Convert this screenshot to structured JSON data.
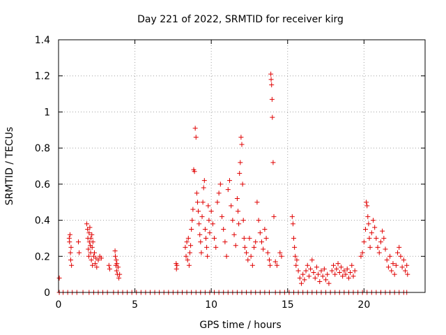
{
  "chart_data": {
    "type": "scatter",
    "title": "Day 221 of 2022, SRMTID for receiver kirg",
    "xlabel": "GPS time / hours",
    "ylabel": "SRMTID / TECUs",
    "xlim": [
      0,
      24
    ],
    "ylim": [
      0,
      1.4
    ],
    "xticks": [
      0,
      5,
      10,
      15,
      20
    ],
    "xtick_labels": [
      "0",
      "5",
      "10",
      "15",
      "20"
    ],
    "yticks": [
      0,
      0.2,
      0.4,
      0.6,
      0.8,
      1.0,
      1.2,
      1.4
    ],
    "ytick_labels": [
      "0",
      "0.2",
      "0.4",
      "0.6",
      "0.8",
      "1",
      "1.2",
      "1.4"
    ],
    "grid": true,
    "marker": "+",
    "color": "#e00000",
    "series": [
      {
        "name": "SRMTID",
        "points": [
          [
            0.05,
            0.08
          ],
          [
            0.05,
            0.0
          ],
          [
            0.3,
            0.0
          ],
          [
            0.6,
            0.0
          ],
          [
            0.7,
            0.3
          ],
          [
            0.72,
            0.28
          ],
          [
            0.75,
            0.32
          ],
          [
            0.78,
            0.22
          ],
          [
            0.8,
            0.18
          ],
          [
            0.82,
            0.25
          ],
          [
            0.85,
            0.15
          ],
          [
            0.9,
            0.0
          ],
          [
            1.2,
            0.0
          ],
          [
            1.3,
            0.28
          ],
          [
            1.35,
            0.22
          ],
          [
            1.6,
            0.0
          ],
          [
            1.85,
            0.38
          ],
          [
            1.9,
            0.35
          ],
          [
            1.92,
            0.3
          ],
          [
            1.95,
            0.24
          ],
          [
            1.98,
            0.2
          ],
          [
            2.0,
            0.33
          ],
          [
            2.02,
            0.28
          ],
          [
            2.05,
            0.36
          ],
          [
            2.08,
            0.26
          ],
          [
            2.1,
            0.22
          ],
          [
            2.12,
            0.3
          ],
          [
            2.15,
            0.18
          ],
          [
            2.18,
            0.32
          ],
          [
            2.2,
            0.25
          ],
          [
            2.22,
            0.15
          ],
          [
            2.25,
            0.28
          ],
          [
            2.3,
            0.2
          ],
          [
            2.35,
            0.22
          ],
          [
            2.4,
            0.16
          ],
          [
            2.45,
            0.19
          ],
          [
            2.5,
            0.14
          ],
          [
            2.6,
            0.18
          ],
          [
            2.7,
            0.2
          ],
          [
            2.8,
            0.19
          ],
          [
            2.0,
            0.0
          ],
          [
            2.3,
            0.0
          ],
          [
            2.6,
            0.0
          ],
          [
            2.9,
            0.0
          ],
          [
            3.2,
            0.0
          ],
          [
            3.3,
            0.15
          ],
          [
            3.35,
            0.13
          ],
          [
            3.7,
            0.23
          ],
          [
            3.72,
            0.2
          ],
          [
            3.75,
            0.15
          ],
          [
            3.78,
            0.18
          ],
          [
            3.8,
            0.12
          ],
          [
            3.82,
            0.16
          ],
          [
            3.85,
            0.1
          ],
          [
            3.9,
            0.14
          ],
          [
            3.95,
            0.08
          ],
          [
            4.0,
            0.1
          ],
          [
            3.6,
            0.0
          ],
          [
            3.9,
            0.0
          ],
          [
            4.2,
            0.0
          ],
          [
            4.5,
            0.0
          ],
          [
            4.8,
            0.0
          ],
          [
            5.1,
            0.0
          ],
          [
            5.4,
            0.0
          ],
          [
            5.7,
            0.0
          ],
          [
            6.0,
            0.0
          ],
          [
            6.3,
            0.0
          ],
          [
            6.6,
            0.0
          ],
          [
            6.9,
            0.0
          ],
          [
            7.2,
            0.0
          ],
          [
            7.5,
            0.0
          ],
          [
            7.7,
            0.16
          ],
          [
            7.72,
            0.13
          ],
          [
            7.75,
            0.15
          ],
          [
            7.8,
            0.0
          ],
          [
            8.1,
            0.0
          ],
          [
            8.3,
            0.25
          ],
          [
            8.35,
            0.2
          ],
          [
            8.4,
            0.28
          ],
          [
            8.45,
            0.18
          ],
          [
            8.5,
            0.3
          ],
          [
            8.55,
            0.15
          ],
          [
            8.6,
            0.22
          ],
          [
            8.65,
            0.26
          ],
          [
            8.7,
            0.35
          ],
          [
            8.75,
            0.4
          ],
          [
            8.8,
            0.46
          ],
          [
            8.85,
            0.68
          ],
          [
            8.9,
            0.67
          ],
          [
            8.95,
            0.91
          ],
          [
            9.0,
            0.86
          ],
          [
            9.05,
            0.55
          ],
          [
            9.1,
            0.5
          ],
          [
            9.15,
            0.45
          ],
          [
            9.2,
            0.38
          ],
          [
            9.25,
            0.32
          ],
          [
            9.3,
            0.28
          ],
          [
            9.35,
            0.22
          ],
          [
            9.4,
            0.42
          ],
          [
            9.45,
            0.5
          ],
          [
            9.5,
            0.58
          ],
          [
            9.55,
            0.62
          ],
          [
            9.6,
            0.35
          ],
          [
            9.65,
            0.3
          ],
          [
            9.7,
            0.25
          ],
          [
            9.75,
            0.2
          ],
          [
            9.8,
            0.48
          ],
          [
            9.85,
            0.4
          ],
          [
            9.9,
            0.33
          ],
          [
            8.4,
            0.0
          ],
          [
            8.7,
            0.0
          ],
          [
            9.0,
            0.0
          ],
          [
            9.3,
            0.0
          ],
          [
            9.6,
            0.0
          ],
          [
            9.9,
            0.0
          ],
          [
            10.0,
            0.45
          ],
          [
            10.1,
            0.38
          ],
          [
            10.2,
            0.3
          ],
          [
            10.3,
            0.25
          ],
          [
            10.4,
            0.5
          ],
          [
            10.5,
            0.55
          ],
          [
            10.6,
            0.6
          ],
          [
            10.7,
            0.42
          ],
          [
            10.8,
            0.35
          ],
          [
            10.9,
            0.28
          ],
          [
            11.0,
            0.2
          ],
          [
            11.1,
            0.57
          ],
          [
            11.2,
            0.62
          ],
          [
            11.3,
            0.48
          ],
          [
            11.4,
            0.4
          ],
          [
            11.5,
            0.32
          ],
          [
            11.6,
            0.26
          ],
          [
            11.7,
            0.52
          ],
          [
            11.75,
            0.45
          ],
          [
            11.8,
            0.38
          ],
          [
            11.85,
            0.66
          ],
          [
            11.9,
            0.72
          ],
          [
            11.95,
            0.86
          ],
          [
            12.0,
            0.82
          ],
          [
            12.05,
            0.6
          ],
          [
            12.1,
            0.4
          ],
          [
            12.15,
            0.3
          ],
          [
            12.2,
            0.25
          ],
          [
            10.2,
            0.0
          ],
          [
            10.5,
            0.0
          ],
          [
            10.8,
            0.0
          ],
          [
            11.1,
            0.0
          ],
          [
            11.4,
            0.0
          ],
          [
            11.7,
            0.0
          ],
          [
            12.0,
            0.0
          ],
          [
            12.3,
            0.22
          ],
          [
            12.4,
            0.18
          ],
          [
            12.5,
            0.3
          ],
          [
            12.6,
            0.2
          ],
          [
            12.7,
            0.15
          ],
          [
            12.8,
            0.25
          ],
          [
            12.9,
            0.28
          ],
          [
            13.0,
            0.5
          ],
          [
            13.1,
            0.4
          ],
          [
            13.2,
            0.33
          ],
          [
            13.3,
            0.28
          ],
          [
            13.4,
            0.24
          ],
          [
            13.5,
            0.35
          ],
          [
            13.6,
            0.3
          ],
          [
            13.7,
            0.22
          ],
          [
            13.8,
            0.18
          ],
          [
            13.85,
            0.15
          ],
          [
            12.3,
            0.0
          ],
          [
            12.6,
            0.0
          ],
          [
            12.9,
            0.0
          ],
          [
            13.2,
            0.0
          ],
          [
            13.5,
            0.0
          ],
          [
            13.8,
            0.0
          ],
          [
            13.9,
            1.21
          ],
          [
            13.92,
            1.18
          ],
          [
            13.95,
            1.15
          ],
          [
            13.98,
            1.07
          ],
          [
            14.0,
            0.97
          ],
          [
            14.05,
            0.72
          ],
          [
            14.1,
            0.42
          ],
          [
            14.2,
            0.17
          ],
          [
            14.3,
            0.15
          ],
          [
            14.5,
            0.22
          ],
          [
            14.6,
            0.2
          ],
          [
            14.2,
            0.0
          ],
          [
            14.5,
            0.0
          ],
          [
            14.8,
            0.0
          ],
          [
            15.1,
            0.0
          ],
          [
            15.3,
            0.42
          ],
          [
            15.35,
            0.38
          ],
          [
            15.4,
            0.3
          ],
          [
            15.45,
            0.25
          ],
          [
            15.5,
            0.2
          ],
          [
            15.55,
            0.15
          ],
          [
            15.6,
            0.18
          ],
          [
            15.7,
            0.12
          ],
          [
            15.8,
            0.08
          ],
          [
            15.9,
            0.05
          ],
          [
            16.0,
            0.1
          ],
          [
            16.1,
            0.07
          ],
          [
            16.2,
            0.12
          ],
          [
            16.3,
            0.15
          ],
          [
            16.4,
            0.09
          ],
          [
            16.5,
            0.13
          ],
          [
            16.6,
            0.18
          ],
          [
            16.7,
            0.11
          ],
          [
            16.8,
            0.08
          ],
          [
            16.9,
            0.14
          ],
          [
            17.0,
            0.1
          ],
          [
            17.1,
            0.06
          ],
          [
            17.2,
            0.12
          ],
          [
            17.3,
            0.09
          ],
          [
            17.4,
            0.13
          ],
          [
            17.5,
            0.07
          ],
          [
            17.6,
            0.1
          ],
          [
            17.7,
            0.05
          ],
          [
            15.4,
            0.0
          ],
          [
            15.7,
            0.0
          ],
          [
            16.0,
            0.0
          ],
          [
            16.3,
            0.0
          ],
          [
            16.6,
            0.0
          ],
          [
            16.9,
            0.0
          ],
          [
            17.2,
            0.0
          ],
          [
            17.5,
            0.0
          ],
          [
            17.8,
            0.0
          ],
          [
            17.9,
            0.12
          ],
          [
            18.0,
            0.15
          ],
          [
            18.1,
            0.1
          ],
          [
            18.2,
            0.13
          ],
          [
            18.3,
            0.16
          ],
          [
            18.4,
            0.11
          ],
          [
            18.5,
            0.14
          ],
          [
            18.6,
            0.09
          ],
          [
            18.7,
            0.12
          ],
          [
            18.8,
            0.1
          ],
          [
            18.9,
            0.13
          ],
          [
            19.0,
            0.08
          ],
          [
            19.1,
            0.11
          ],
          [
            19.2,
            0.15
          ],
          [
            19.3,
            0.09
          ],
          [
            19.4,
            0.12
          ],
          [
            18.1,
            0.0
          ],
          [
            18.4,
            0.0
          ],
          [
            18.7,
            0.0
          ],
          [
            19.0,
            0.0
          ],
          [
            19.3,
            0.0
          ],
          [
            19.6,
            0.0
          ],
          [
            19.8,
            0.2
          ],
          [
            19.9,
            0.22
          ],
          [
            20.0,
            0.28
          ],
          [
            20.1,
            0.35
          ],
          [
            20.15,
            0.5
          ],
          [
            20.2,
            0.48
          ],
          [
            20.25,
            0.42
          ],
          [
            20.3,
            0.38
          ],
          [
            20.35,
            0.3
          ],
          [
            20.4,
            0.25
          ],
          [
            20.5,
            0.33
          ],
          [
            20.6,
            0.4
          ],
          [
            20.7,
            0.36
          ],
          [
            20.8,
            0.3
          ],
          [
            20.9,
            0.25
          ],
          [
            21.0,
            0.22
          ],
          [
            21.1,
            0.28
          ],
          [
            21.2,
            0.34
          ],
          [
            21.3,
            0.3
          ],
          [
            21.4,
            0.24
          ],
          [
            19.9,
            0.0
          ],
          [
            20.2,
            0.0
          ],
          [
            20.5,
            0.0
          ],
          [
            20.8,
            0.0
          ],
          [
            21.1,
            0.0
          ],
          [
            21.4,
            0.0
          ],
          [
            21.5,
            0.18
          ],
          [
            21.6,
            0.14
          ],
          [
            21.7,
            0.2
          ],
          [
            21.8,
            0.12
          ],
          [
            21.9,
            0.16
          ],
          [
            22.0,
            0.1
          ],
          [
            22.1,
            0.15
          ],
          [
            22.2,
            0.22
          ],
          [
            22.3,
            0.25
          ],
          [
            22.4,
            0.2
          ],
          [
            22.5,
            0.14
          ],
          [
            22.6,
            0.18
          ],
          [
            22.7,
            0.12
          ],
          [
            22.8,
            0.15
          ],
          [
            22.85,
            0.1
          ],
          [
            21.7,
            0.0
          ],
          [
            22.0,
            0.0
          ],
          [
            22.3,
            0.0
          ],
          [
            22.6,
            0.0
          ],
          [
            22.8,
            0.0
          ]
        ]
      }
    ]
  }
}
